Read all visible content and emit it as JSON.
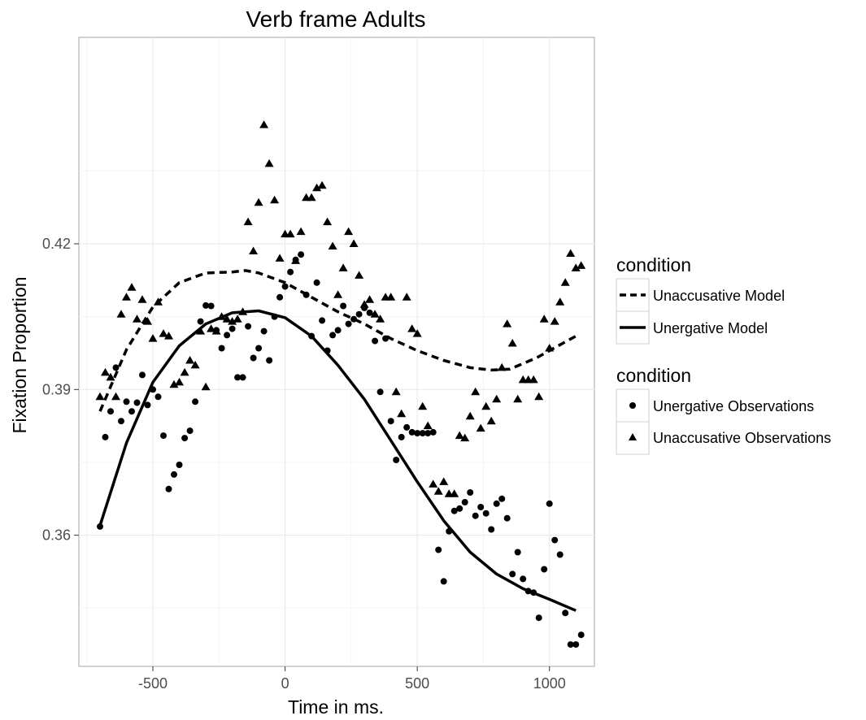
{
  "chart_data": {
    "type": "scatter",
    "title": "Verb frame Adults",
    "xlabel": "Time in ms.",
    "ylabel": "Fixation Proportion",
    "xlim": [
      -780,
      1170
    ],
    "ylim": [
      0.333,
      0.4625
    ],
    "x_ticks": [
      -500,
      0,
      500,
      1000
    ],
    "x_tick_labels": [
      "-500",
      "0",
      "500",
      "1000"
    ],
    "y_ticks": [
      0.36,
      0.39,
      0.42
    ],
    "y_tick_labels": [
      "0.36",
      "0.39",
      "0.42"
    ],
    "grid": true,
    "legend_position": "right",
    "legends": [
      {
        "title": "condition",
        "entries": [
          {
            "label": "Unaccusative Model",
            "key": "dashed-line"
          },
          {
            "label": "Unergative Model",
            "key": "solid-line"
          }
        ]
      },
      {
        "title": "condition",
        "entries": [
          {
            "label": "Unergative Observations",
            "key": "circle"
          },
          {
            "label": "Unaccusative Observations",
            "key": "triangle"
          }
        ]
      }
    ],
    "series": [
      {
        "name": "Unergative Observations",
        "marker": "circle",
        "points": [
          [
            -700,
            0.3618
          ],
          [
            -680,
            0.3802
          ],
          [
            -660,
            0.3855
          ],
          [
            -640,
            0.3945
          ],
          [
            -620,
            0.3835
          ],
          [
            -600,
            0.3875
          ],
          [
            -580,
            0.3855
          ],
          [
            -560,
            0.3873
          ],
          [
            -540,
            0.393
          ],
          [
            -520,
            0.3868
          ],
          [
            -500,
            0.39
          ],
          [
            -480,
            0.3885
          ],
          [
            -460,
            0.3805
          ],
          [
            -440,
            0.3695
          ],
          [
            -420,
            0.3725
          ],
          [
            -400,
            0.3745
          ],
          [
            -380,
            0.38
          ],
          [
            -360,
            0.3815
          ],
          [
            -340,
            0.3875
          ],
          [
            -320,
            0.404
          ],
          [
            -300,
            0.4073
          ],
          [
            -280,
            0.4072
          ],
          [
            -260,
            0.4022
          ],
          [
            -240,
            0.3985
          ],
          [
            -220,
            0.4012
          ],
          [
            -200,
            0.4025
          ],
          [
            -180,
            0.3925
          ],
          [
            -160,
            0.3925
          ],
          [
            -140,
            0.403
          ],
          [
            -120,
            0.3965
          ],
          [
            -100,
            0.3985
          ],
          [
            -80,
            0.402
          ],
          [
            -60,
            0.396
          ],
          [
            -40,
            0.405
          ],
          [
            -20,
            0.409
          ],
          [
            0,
            0.4112
          ],
          [
            20,
            0.4142
          ],
          [
            40,
            0.4167
          ],
          [
            60,
            0.4178
          ],
          [
            80,
            0.4095
          ],
          [
            100,
            0.401
          ],
          [
            120,
            0.412
          ],
          [
            140,
            0.4042
          ],
          [
            160,
            0.398
          ],
          [
            180,
            0.4012
          ],
          [
            200,
            0.4022
          ],
          [
            220,
            0.4072
          ],
          [
            240,
            0.4035
          ],
          [
            260,
            0.4045
          ],
          [
            280,
            0.4055
          ],
          [
            300,
            0.4068
          ],
          [
            320,
            0.4058
          ],
          [
            340,
            0.4
          ],
          [
            360,
            0.3895
          ],
          [
            380,
            0.4005
          ],
          [
            400,
            0.3835
          ],
          [
            420,
            0.3755
          ],
          [
            440,
            0.3802
          ],
          [
            460,
            0.3822
          ],
          [
            480,
            0.3812
          ],
          [
            500,
            0.381
          ],
          [
            520,
            0.381
          ],
          [
            540,
            0.381
          ],
          [
            560,
            0.3812
          ],
          [
            580,
            0.357
          ],
          [
            600,
            0.3505
          ],
          [
            620,
            0.3608
          ],
          [
            640,
            0.365
          ],
          [
            660,
            0.3655
          ],
          [
            680,
            0.3668
          ],
          [
            700,
            0.3688
          ],
          [
            720,
            0.364
          ],
          [
            740,
            0.3658
          ],
          [
            760,
            0.3645
          ],
          [
            780,
            0.3612
          ],
          [
            800,
            0.3665
          ],
          [
            820,
            0.3675
          ],
          [
            840,
            0.3635
          ],
          [
            860,
            0.352
          ],
          [
            880,
            0.3565
          ],
          [
            900,
            0.351
          ],
          [
            920,
            0.3485
          ],
          [
            940,
            0.3482
          ],
          [
            960,
            0.343
          ],
          [
            980,
            0.353
          ],
          [
            1000,
            0.3665
          ],
          [
            1020,
            0.359
          ],
          [
            1040,
            0.356
          ],
          [
            1060,
            0.344
          ],
          [
            1080,
            0.3375
          ],
          [
            1100,
            0.3375
          ],
          [
            1120,
            0.3395
          ]
        ]
      },
      {
        "name": "Unaccusative Observations",
        "marker": "triangle",
        "points": [
          [
            -700,
            0.3885
          ],
          [
            -680,
            0.3935
          ],
          [
            -660,
            0.3925
          ],
          [
            -640,
            0.3885
          ],
          [
            -620,
            0.4055
          ],
          [
            -600,
            0.409
          ],
          [
            -580,
            0.411
          ],
          [
            -560,
            0.4045
          ],
          [
            -540,
            0.4085
          ],
          [
            -520,
            0.404
          ],
          [
            -500,
            0.4005
          ],
          [
            -480,
            0.408
          ],
          [
            -460,
            0.4015
          ],
          [
            -440,
            0.401
          ],
          [
            -420,
            0.391
          ],
          [
            -400,
            0.3915
          ],
          [
            -380,
            0.3935
          ],
          [
            -360,
            0.396
          ],
          [
            -340,
            0.395
          ],
          [
            -320,
            0.402
          ],
          [
            -300,
            0.3905
          ],
          [
            -280,
            0.4025
          ],
          [
            -260,
            0.402
          ],
          [
            -240,
            0.405
          ],
          [
            -220,
            0.4045
          ],
          [
            -200,
            0.404
          ],
          [
            -180,
            0.4045
          ],
          [
            -160,
            0.406
          ],
          [
            -140,
            0.4245
          ],
          [
            -120,
            0.4185
          ],
          [
            -100,
            0.4285
          ],
          [
            -80,
            0.4445
          ],
          [
            -60,
            0.4365
          ],
          [
            -40,
            0.429
          ],
          [
            -20,
            0.417
          ],
          [
            0,
            0.422
          ],
          [
            20,
            0.422
          ],
          [
            40,
            0.4165
          ],
          [
            60,
            0.4225
          ],
          [
            80,
            0.4295
          ],
          [
            100,
            0.4295
          ],
          [
            120,
            0.4315
          ],
          [
            140,
            0.432
          ],
          [
            160,
            0.4245
          ],
          [
            180,
            0.4195
          ],
          [
            200,
            0.4095
          ],
          [
            220,
            0.415
          ],
          [
            240,
            0.4225
          ],
          [
            260,
            0.42
          ],
          [
            280,
            0.4135
          ],
          [
            300,
            0.4075
          ],
          [
            320,
            0.4085
          ],
          [
            340,
            0.4055
          ],
          [
            360,
            0.4045
          ],
          [
            380,
            0.409
          ],
          [
            400,
            0.409
          ],
          [
            420,
            0.3895
          ],
          [
            440,
            0.385
          ],
          [
            460,
            0.409
          ],
          [
            480,
            0.4025
          ],
          [
            500,
            0.4015
          ],
          [
            520,
            0.3865
          ],
          [
            540,
            0.3825
          ],
          [
            560,
            0.3705
          ],
          [
            580,
            0.369
          ],
          [
            600,
            0.371
          ],
          [
            620,
            0.3685
          ],
          [
            640,
            0.3685
          ],
          [
            660,
            0.3805
          ],
          [
            680,
            0.38
          ],
          [
            700,
            0.3845
          ],
          [
            720,
            0.3895
          ],
          [
            740,
            0.382
          ],
          [
            760,
            0.3865
          ],
          [
            780,
            0.3835
          ],
          [
            800,
            0.388
          ],
          [
            820,
            0.3945
          ],
          [
            840,
            0.4035
          ],
          [
            860,
            0.3995
          ],
          [
            880,
            0.388
          ],
          [
            900,
            0.392
          ],
          [
            920,
            0.392
          ],
          [
            940,
            0.392
          ],
          [
            960,
            0.3885
          ],
          [
            980,
            0.4045
          ],
          [
            1000,
            0.3985
          ],
          [
            1020,
            0.404
          ],
          [
            1040,
            0.408
          ],
          [
            1060,
            0.412
          ],
          [
            1080,
            0.418
          ],
          [
            1100,
            0.415
          ],
          [
            1120,
            0.4155
          ]
        ]
      },
      {
        "name": "Unaccusative Model",
        "style": "dashed",
        "points": [
          [
            -700,
            0.3855
          ],
          [
            -600,
            0.3982
          ],
          [
            -500,
            0.407
          ],
          [
            -400,
            0.412
          ],
          [
            -300,
            0.414
          ],
          [
            -200,
            0.4142
          ],
          [
            -150,
            0.4145
          ],
          [
            -100,
            0.414
          ],
          [
            0,
            0.412
          ],
          [
            100,
            0.409
          ],
          [
            200,
            0.406
          ],
          [
            300,
            0.4035
          ],
          [
            400,
            0.4005
          ],
          [
            500,
            0.398
          ],
          [
            600,
            0.396
          ],
          [
            700,
            0.3945
          ],
          [
            780,
            0.394
          ],
          [
            850,
            0.3942
          ],
          [
            950,
            0.3965
          ],
          [
            1050,
            0.3995
          ],
          [
            1100,
            0.401
          ]
        ]
      },
      {
        "name": "Unergative Model",
        "style": "solid",
        "points": [
          [
            -700,
            0.362
          ],
          [
            -600,
            0.379
          ],
          [
            -500,
            0.3915
          ],
          [
            -400,
            0.399
          ],
          [
            -300,
            0.4035
          ],
          [
            -200,
            0.4058
          ],
          [
            -100,
            0.4062
          ],
          [
            0,
            0.4048
          ],
          [
            100,
            0.401
          ],
          [
            200,
            0.395
          ],
          [
            300,
            0.388
          ],
          [
            400,
            0.3795
          ],
          [
            500,
            0.371
          ],
          [
            600,
            0.363
          ],
          [
            700,
            0.3565
          ],
          [
            800,
            0.352
          ],
          [
            900,
            0.349
          ],
          [
            1000,
            0.3468
          ],
          [
            1100,
            0.3445
          ]
        ]
      }
    ]
  }
}
